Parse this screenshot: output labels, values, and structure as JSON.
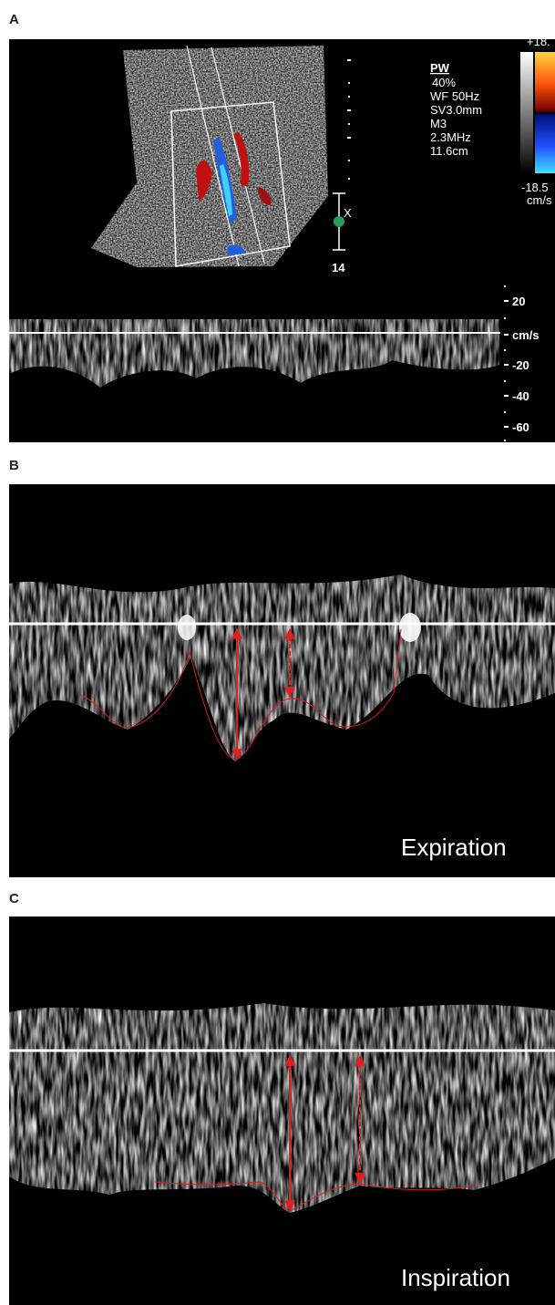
{
  "panels": [
    {
      "label": "A",
      "settings": [
        "PW",
        "40%",
        "WF 50Hz",
        "SV3.0mm",
        "M3",
        "2.3MHz",
        "11.6cm"
      ],
      "color_scale": {
        "max": "+18.",
        "min": "-18.5",
        "unit": "cm/s"
      },
      "depth_marker": "14",
      "gate_marker": "X",
      "velocity_scale": [
        "20",
        "cm/s",
        "-20",
        "-40",
        "-60"
      ]
    },
    {
      "label": "B",
      "caption": "Expiration"
    },
    {
      "label": "C",
      "caption": "Inspiration"
    }
  ]
}
